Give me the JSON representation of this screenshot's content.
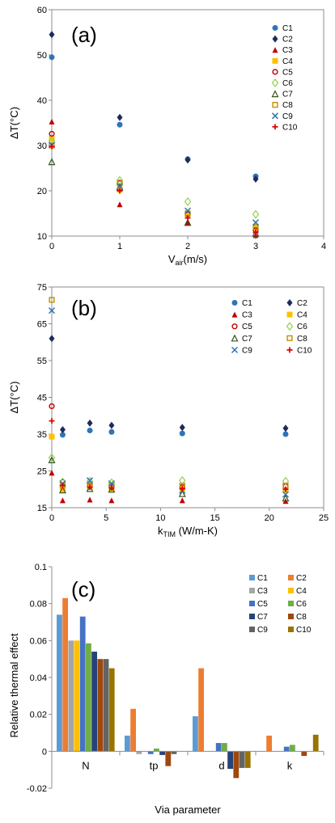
{
  "chart_data": [
    {
      "type": "scatter",
      "panel_label": "(a)",
      "ylabel": "ΔT(°C)",
      "xlabel_main": "V",
      "xlabel_sub": "air",
      "xlabel_unit": "(m/s)",
      "xlim": [
        0,
        4
      ],
      "ylim": [
        10,
        60
      ],
      "xticks": [
        "0",
        "1",
        "2",
        "3",
        "4"
      ],
      "yticks": [
        "10",
        "20",
        "30",
        "40",
        "50",
        "60"
      ],
      "legend_position": "right",
      "legend_columns": 1,
      "series": [
        {
          "name": "C1",
          "marker": "circle-filled",
          "color": "#2E75B6",
          "x": [
            0,
            1,
            2,
            3
          ],
          "y": [
            49.5,
            34.6,
            27.0,
            23.2
          ]
        },
        {
          "name": "C2",
          "marker": "diamond-filled",
          "color": "#1F2A5C",
          "x": [
            0,
            1,
            2,
            3
          ],
          "y": [
            54.5,
            36.2,
            26.8,
            22.6
          ]
        },
        {
          "name": "C3",
          "marker": "triangle-filled",
          "color": "#C00000",
          "x": [
            0,
            1,
            2,
            3
          ],
          "y": [
            35.3,
            17.0,
            12.9,
            10.2
          ]
        },
        {
          "name": "C4",
          "marker": "square-filled",
          "color": "#FFC000",
          "x": [
            0,
            1,
            2,
            3
          ],
          "y": [
            31.5,
            20.2,
            14.8,
            11.8
          ]
        },
        {
          "name": "C5",
          "marker": "circle-open",
          "color": "#C00000",
          "x": [
            0,
            1,
            2,
            3
          ],
          "y": [
            32.6,
            21.8,
            14.8,
            11.3
          ]
        },
        {
          "name": "C6",
          "marker": "diamond-open",
          "color": "#92D050",
          "x": [
            0,
            1,
            2,
            3
          ],
          "y": [
            31.0,
            22.3,
            17.6,
            14.8
          ]
        },
        {
          "name": "C7",
          "marker": "triangle-open",
          "color": "#375623",
          "x": [
            0,
            1,
            2,
            3
          ],
          "y": [
            26.4,
            20.8,
            13.0,
            10.6
          ]
        },
        {
          "name": "C8",
          "marker": "square-open",
          "color": "#BF9000",
          "x": [
            0,
            1,
            2,
            3
          ],
          "y": [
            30.0,
            21.6,
            15.0,
            12.0
          ]
        },
        {
          "name": "C9",
          "marker": "x",
          "color": "#2E75B6",
          "x": [
            0,
            1,
            2,
            3
          ],
          "y": [
            30.1,
            21.0,
            15.6,
            13.0
          ]
        },
        {
          "name": "C10",
          "marker": "plus",
          "color": "#E00000",
          "x": [
            0,
            1,
            2,
            3
          ],
          "y": [
            29.8,
            20.0,
            14.0,
            10.8
          ]
        }
      ]
    },
    {
      "type": "scatter",
      "panel_label": "(b)",
      "ylabel": "ΔT(°C)",
      "xlabel_main": "k",
      "xlabel_sub": "TIM",
      "xlabel_unit": " (W/m-K)",
      "xlim": [
        0,
        25
      ],
      "ylim": [
        15,
        75
      ],
      "xticks": [
        "0",
        "5",
        "10",
        "15",
        "20",
        "25"
      ],
      "yticks": [
        "15",
        "25",
        "35",
        "45",
        "55",
        "65",
        "75"
      ],
      "legend_position": "top-right",
      "legend_columns": 2,
      "series": [
        {
          "name": "C1",
          "marker": "circle-filled",
          "color": "#2E75B6",
          "x": [
            1,
            3.5,
            5.5,
            12,
            21.5
          ],
          "y": [
            34.8,
            36.0,
            35.6,
            35.2,
            35.0
          ]
        },
        {
          "name": "C2",
          "marker": "diamond-filled",
          "color": "#1F2A5C",
          "x": [
            0,
            1,
            3.5,
            5.5,
            12,
            21.5
          ],
          "y": [
            61.0,
            36.2,
            38.0,
            37.4,
            36.8,
            36.6
          ]
        },
        {
          "name": "C3",
          "marker": "triangle-filled",
          "color": "#C00000",
          "x": [
            0,
            1,
            3.5,
            5.5,
            12,
            21.5
          ],
          "y": [
            24.5,
            17.0,
            17.2,
            17.0,
            17.0,
            16.8
          ]
        },
        {
          "name": "C4",
          "marker": "square-filled",
          "color": "#FFC000",
          "x": [
            0,
            1,
            3.5,
            5.5,
            12,
            21.5
          ],
          "y": [
            34.3,
            20.0,
            20.6,
            20.2,
            20.0,
            19.8
          ]
        },
        {
          "name": "C5",
          "marker": "circle-open",
          "color": "#C00000",
          "x": [
            0,
            1,
            3.5,
            5.5,
            12,
            21.5
          ],
          "y": [
            42.6,
            22.0,
            21.0,
            20.6,
            20.6,
            20.8
          ]
        },
        {
          "name": "C6",
          "marker": "diamond-open",
          "color": "#92D050",
          "x": [
            0,
            1,
            3.5,
            5.5,
            12,
            21.5
          ],
          "y": [
            28.6,
            22.0,
            22.2,
            21.8,
            22.4,
            22.2
          ]
        },
        {
          "name": "C7",
          "marker": "triangle-open",
          "color": "#375623",
          "x": [
            0,
            1,
            3.5,
            5.5,
            12,
            21.5
          ],
          "y": [
            28.0,
            19.8,
            20.2,
            20.0,
            18.8,
            17.6
          ]
        },
        {
          "name": "C8",
          "marker": "square-open",
          "color": "#BF9000",
          "x": [
            0,
            1,
            3.5,
            5.5,
            12,
            21.5
          ],
          "y": [
            71.5,
            21.0,
            21.2,
            21.0,
            21.0,
            21.0
          ]
        },
        {
          "name": "C9",
          "marker": "x",
          "color": "#2E75B6",
          "x": [
            0,
            1,
            3.5,
            5.5,
            12,
            21.5
          ],
          "y": [
            68.6,
            21.6,
            22.4,
            21.6,
            19.6,
            18.6
          ]
        },
        {
          "name": "C10",
          "marker": "plus",
          "color": "#E00000",
          "x": [
            0,
            1,
            3.5,
            5.5,
            12,
            21.5
          ],
          "y": [
            38.6,
            21.0,
            20.6,
            20.4,
            20.2,
            20.0
          ]
        }
      ]
    },
    {
      "type": "bar",
      "panel_label": "(c)",
      "ylabel": "Relative thermal effect",
      "xlabel": "Via parameter",
      "ylim": [
        -0.02,
        0.1
      ],
      "yticks": [
        "-0.02",
        "0",
        "0.02",
        "0.04",
        "0.06",
        "0.08",
        "0.1"
      ],
      "categories": [
        "N",
        "tp",
        "d",
        "k"
      ],
      "legend_position": "top-right",
      "legend_columns": 2,
      "series": [
        {
          "name": "C1",
          "color": "#5B9BD5",
          "values": [
            0.074,
            0.0085,
            0.019,
            0.0
          ]
        },
        {
          "name": "C2",
          "color": "#ED7D31",
          "values": [
            0.083,
            0.023,
            0.045,
            0.0085
          ]
        },
        {
          "name": "C3",
          "color": "#A5A5A5",
          "values": [
            0.06,
            -0.0015,
            0.0,
            0.0
          ]
        },
        {
          "name": "C4",
          "color": "#FFC000",
          "values": [
            0.06,
            0.0,
            0.0,
            0.0
          ]
        },
        {
          "name": "C5",
          "color": "#4472C4",
          "values": [
            0.073,
            -0.0015,
            0.0045,
            0.0025
          ]
        },
        {
          "name": "C6",
          "color": "#70AD47",
          "values": [
            0.0585,
            0.0015,
            0.0045,
            0.0035
          ]
        },
        {
          "name": "C7",
          "color": "#264478",
          "values": [
            0.054,
            -0.002,
            -0.0095,
            0.0
          ]
        },
        {
          "name": "C8",
          "color": "#9E480E",
          "values": [
            0.05,
            -0.008,
            -0.0145,
            -0.0025
          ]
        },
        {
          "name": "C9",
          "color": "#636363",
          "values": [
            0.05,
            -0.0015,
            -0.009,
            0.0
          ]
        },
        {
          "name": "C10",
          "color": "#997300",
          "values": [
            0.045,
            0.0,
            -0.009,
            0.009
          ]
        }
      ]
    }
  ]
}
